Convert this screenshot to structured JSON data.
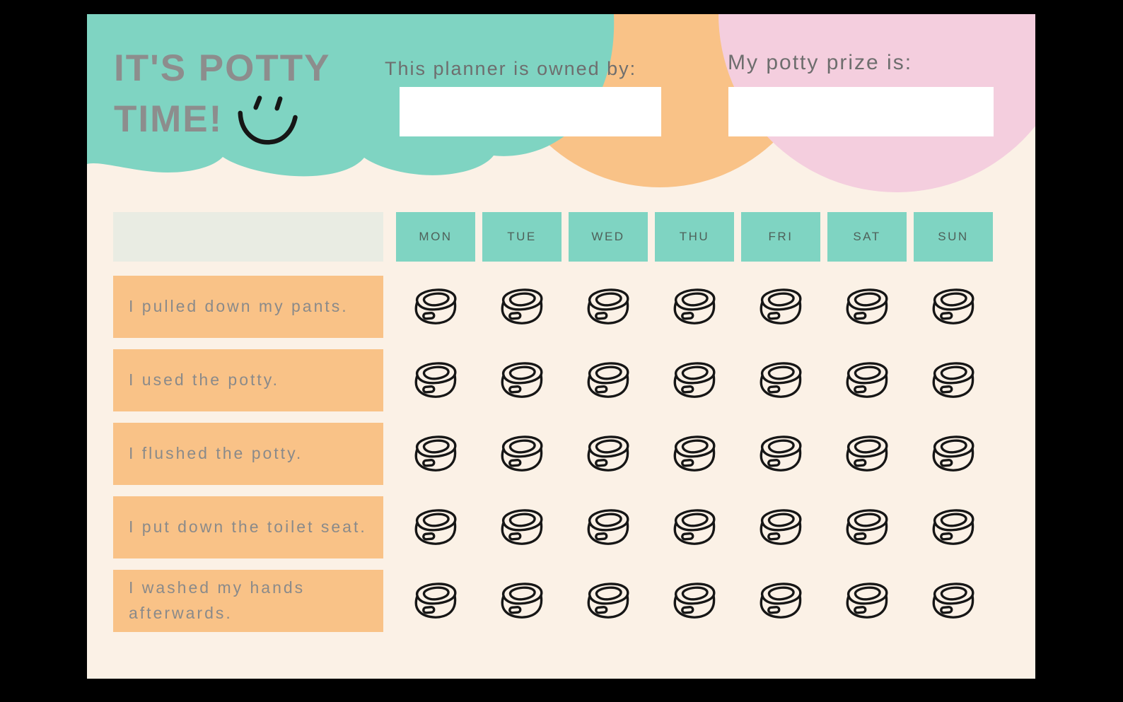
{
  "header": {
    "title_line1": "IT'S POTTY",
    "title_line2": "TIME!",
    "smiley_icon": "smiley-face-icon",
    "owner_label": "This planner is owned by:",
    "owner_value": "",
    "prize_label": "My potty prize is:",
    "prize_value": ""
  },
  "chart": {
    "days": [
      "MON",
      "TUE",
      "WED",
      "THU",
      "FRI",
      "SAT",
      "SUN"
    ],
    "tasks": [
      "I pulled down my pants.",
      "I used the potty.",
      "I flushed the potty.",
      "I put down the toilet seat.",
      "I washed my hands afterwards."
    ],
    "cell_icon": "potty-icon"
  },
  "colors": {
    "teal": "#7fd4c2",
    "orange": "#f9c287",
    "pink": "#f4cede",
    "cream": "#fbf1e6",
    "corner-gray": "#e9ece3",
    "title-gray": "#8d8d8d",
    "label-gray": "#6e6e6e",
    "task-text-gray": "#8a8a8a",
    "day-text": "#4e6059",
    "ink": "#161616",
    "frame-black": "#000000",
    "field-white": "#ffffff"
  }
}
